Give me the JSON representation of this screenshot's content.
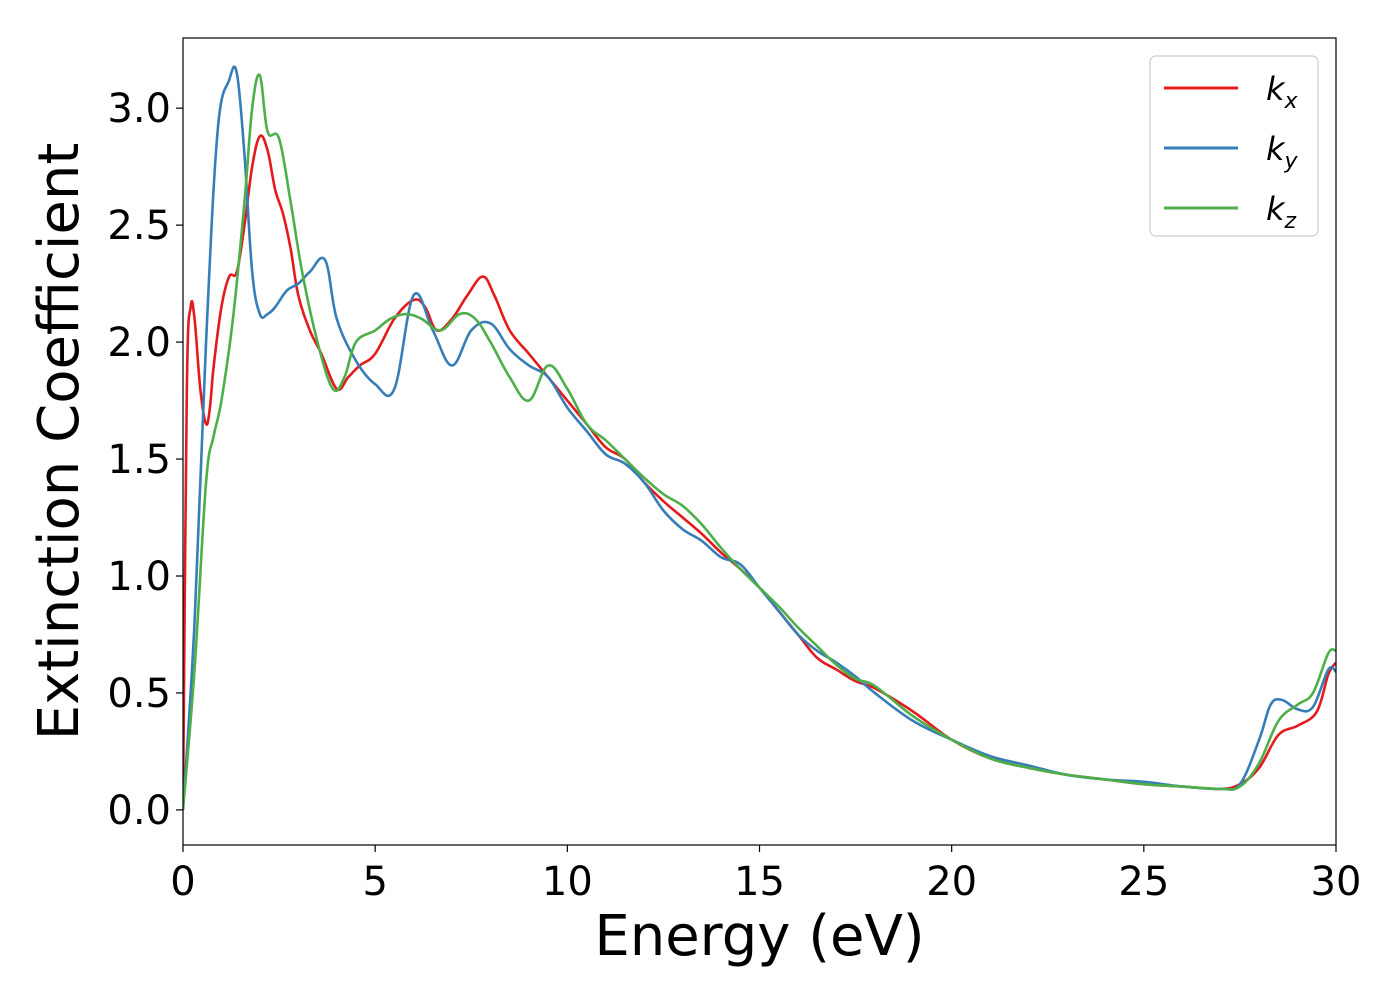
{
  "chart_data": {
    "type": "line",
    "xlabel": "Energy (eV)",
    "ylabel": "Extinction Coefficient",
    "xlim": [
      0,
      30
    ],
    "ylim": [
      -0.15,
      3.3
    ],
    "xticks": [
      0,
      5,
      10,
      15,
      20,
      25,
      30
    ],
    "yticks": [
      0.0,
      0.5,
      1.0,
      1.5,
      2.0,
      2.5,
      3.0
    ],
    "grid": false,
    "legend_position": "top-right",
    "series": [
      {
        "name": "k_x",
        "label_base": "k",
        "label_sub": "x",
        "color": "#e41a1c",
        "x": [
          0,
          0.1,
          0.2,
          0.3,
          0.45,
          0.6,
          0.7,
          0.8,
          1.0,
          1.2,
          1.4,
          1.6,
          1.8,
          2.0,
          2.2,
          2.4,
          2.6,
          2.8,
          3.0,
          3.3,
          3.6,
          4.0,
          4.3,
          4.6,
          5.0,
          5.5,
          6.0,
          6.3,
          6.6,
          7.0,
          7.4,
          7.8,
          8.1,
          8.5,
          9.0,
          9.5,
          10.0,
          10.5,
          11.0,
          11.5,
          12.0,
          12.5,
          13.0,
          13.5,
          14.0,
          14.5,
          15.0,
          15.5,
          16.0,
          16.5,
          17.0,
          17.5,
          18.0,
          19.0,
          20.0,
          21.0,
          22.0,
          23.0,
          24.0,
          25.0,
          26.0,
          27.0,
          27.5,
          28.0,
          28.5,
          29.0,
          29.5,
          29.8,
          30.0
        ],
        "values": [
          0.0,
          1.8,
          2.15,
          2.1,
          1.8,
          1.65,
          1.72,
          1.9,
          2.15,
          2.28,
          2.3,
          2.5,
          2.75,
          2.88,
          2.82,
          2.65,
          2.55,
          2.4,
          2.2,
          2.05,
          1.95,
          1.8,
          1.85,
          1.9,
          1.95,
          2.1,
          2.18,
          2.15,
          2.05,
          2.1,
          2.2,
          2.28,
          2.2,
          2.05,
          1.95,
          1.85,
          1.75,
          1.65,
          1.55,
          1.5,
          1.4,
          1.32,
          1.25,
          1.18,
          1.1,
          1.03,
          0.95,
          0.85,
          0.75,
          0.65,
          0.6,
          0.55,
          0.52,
          0.42,
          0.3,
          0.22,
          0.18,
          0.15,
          0.13,
          0.11,
          0.1,
          0.09,
          0.11,
          0.18,
          0.32,
          0.36,
          0.42,
          0.58,
          0.63
        ]
      },
      {
        "name": "k_y",
        "label_base": "k",
        "label_sub": "y",
        "color": "#377eb8",
        "x": [
          0,
          0.3,
          0.6,
          0.9,
          1.2,
          1.4,
          1.6,
          1.8,
          2.0,
          2.2,
          2.4,
          2.7,
          3.0,
          3.3,
          3.7,
          4.0,
          4.5,
          5.0,
          5.5,
          6.0,
          6.5,
          7.0,
          7.5,
          8.0,
          8.5,
          9.0,
          9.5,
          10.0,
          10.5,
          11.0,
          11.5,
          12.0,
          12.5,
          13.0,
          13.5,
          14.0,
          14.5,
          15.0,
          15.5,
          16.0,
          16.5,
          17.0,
          17.5,
          18.0,
          19.0,
          20.0,
          21.0,
          22.0,
          23.0,
          24.0,
          25.0,
          26.0,
          27.0,
          27.5,
          28.0,
          28.3,
          28.6,
          29.0,
          29.4,
          29.8,
          30.0
        ],
        "values": [
          0.0,
          0.8,
          2.0,
          2.9,
          3.12,
          3.15,
          2.8,
          2.3,
          2.12,
          2.12,
          2.15,
          2.22,
          2.25,
          2.3,
          2.35,
          2.1,
          1.92,
          1.82,
          1.8,
          2.2,
          2.05,
          1.9,
          2.05,
          2.08,
          1.97,
          1.9,
          1.85,
          1.72,
          1.62,
          1.52,
          1.48,
          1.4,
          1.28,
          1.2,
          1.15,
          1.08,
          1.05,
          0.95,
          0.85,
          0.75,
          0.68,
          0.63,
          0.57,
          0.5,
          0.38,
          0.3,
          0.23,
          0.19,
          0.15,
          0.13,
          0.12,
          0.1,
          0.09,
          0.11,
          0.3,
          0.45,
          0.47,
          0.43,
          0.44,
          0.6,
          0.59
        ]
      },
      {
        "name": "k_z",
        "label_base": "k",
        "label_sub": "z",
        "color": "#4daf4a",
        "x": [
          0,
          0.3,
          0.6,
          0.8,
          1.0,
          1.3,
          1.6,
          1.8,
          2.0,
          2.2,
          2.5,
          2.8,
          3.1,
          3.5,
          3.9,
          4.2,
          4.5,
          5.0,
          5.4,
          5.8,
          6.2,
          6.7,
          7.2,
          7.6,
          8.0,
          8.5,
          9.0,
          9.5,
          10.0,
          10.5,
          11.0,
          11.5,
          12.0,
          12.5,
          13.0,
          13.5,
          14.0,
          14.5,
          15.0,
          15.5,
          16.0,
          16.5,
          17.0,
          17.5,
          18.0,
          19.0,
          20.0,
          21.0,
          22.0,
          23.0,
          24.0,
          25.0,
          26.0,
          27.0,
          27.5,
          28.0,
          28.5,
          29.0,
          29.4,
          29.8,
          30.0
        ],
        "values": [
          0.0,
          0.6,
          1.4,
          1.6,
          1.75,
          2.1,
          2.6,
          3.0,
          3.14,
          2.9,
          2.87,
          2.6,
          2.3,
          2.0,
          1.8,
          1.85,
          2.0,
          2.05,
          2.1,
          2.12,
          2.1,
          2.05,
          2.12,
          2.1,
          2.0,
          1.85,
          1.75,
          1.9,
          1.8,
          1.65,
          1.58,
          1.5,
          1.42,
          1.35,
          1.3,
          1.22,
          1.12,
          1.03,
          0.95,
          0.87,
          0.78,
          0.7,
          0.62,
          0.56,
          0.53,
          0.4,
          0.3,
          0.22,
          0.18,
          0.15,
          0.13,
          0.11,
          0.1,
          0.09,
          0.1,
          0.2,
          0.38,
          0.45,
          0.5,
          0.67,
          0.68
        ]
      }
    ]
  }
}
